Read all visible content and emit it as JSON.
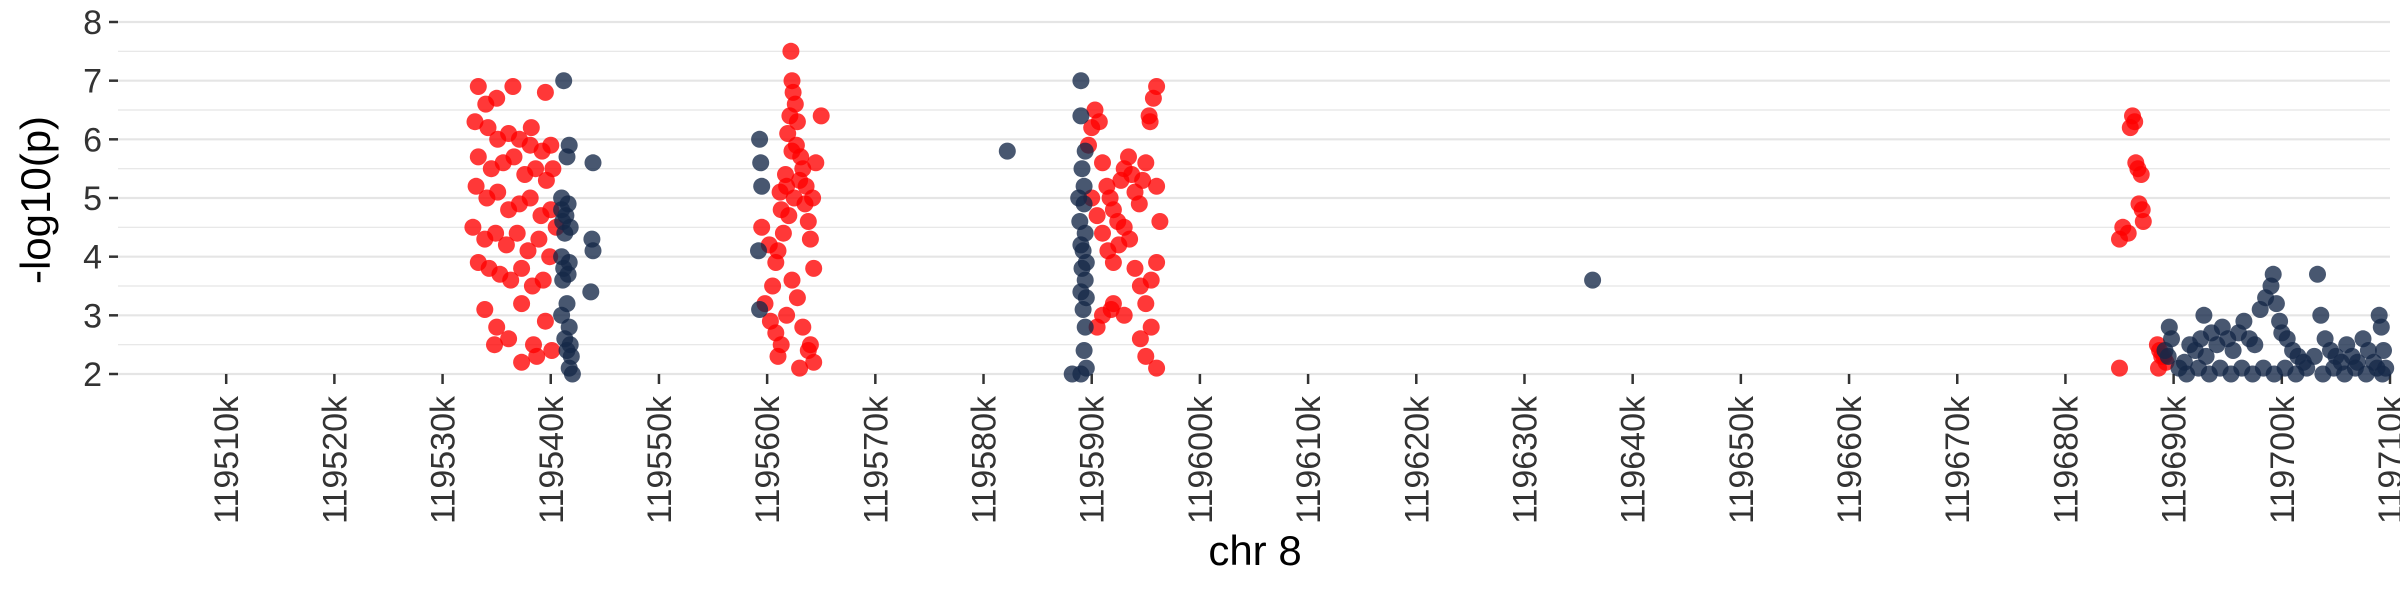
{
  "chart_data": {
    "type": "scatter",
    "title": "",
    "xlabel": "chr 8",
    "ylabel": "-log10(p)",
    "xlim": [
      119500000,
      119710000
    ],
    "ylim": [
      2,
      8
    ],
    "grid": "horizontal",
    "x_ticks": [
      119510000,
      119520000,
      119530000,
      119540000,
      119550000,
      119560000,
      119570000,
      119580000,
      119590000,
      119600000,
      119610000,
      119620000,
      119630000,
      119640000,
      119650000,
      119660000,
      119670000,
      119680000,
      119690000,
      119700000,
      119710000
    ],
    "x_tick_labels": [
      "119510k",
      "119520k",
      "119530k",
      "119540k",
      "119550k",
      "119560k",
      "119570k",
      "119580k",
      "119590k",
      "119600k",
      "119610k",
      "119620k",
      "119630k",
      "119640k",
      "119650k",
      "119660k",
      "119670k",
      "119680k",
      "119690k",
      "119700k",
      "119710k"
    ],
    "y_ticks": [
      2,
      3,
      4,
      5,
      6,
      7,
      8
    ],
    "y_tick_labels": [
      "2",
      "3",
      "4",
      "5",
      "6",
      "7",
      "8"
    ],
    "colors": {
      "series_a": "#ff0000",
      "series_b": "#152848",
      "grid": "#e5e5e5",
      "axis": "#333333"
    },
    "series": [
      {
        "color": "#ff0000",
        "points": [
          [
            119533300,
            6.9
          ],
          [
            119534000,
            6.6
          ],
          [
            119535000,
            6.7
          ],
          [
            119536500,
            6.9
          ],
          [
            119538200,
            6.2
          ],
          [
            119539500,
            6.8
          ],
          [
            119533000,
            6.3
          ],
          [
            119534200,
            6.2
          ],
          [
            119535100,
            6.0
          ],
          [
            119536100,
            6.1
          ],
          [
            119537100,
            6.0
          ],
          [
            119538100,
            5.9
          ],
          [
            119539200,
            5.8
          ],
          [
            119540000,
            5.9
          ],
          [
            119533300,
            5.7
          ],
          [
            119534500,
            5.5
          ],
          [
            119535600,
            5.6
          ],
          [
            119536600,
            5.7
          ],
          [
            119537600,
            5.4
          ],
          [
            119538600,
            5.5
          ],
          [
            119539600,
            5.3
          ],
          [
            119533100,
            5.2
          ],
          [
            119534100,
            5.0
          ],
          [
            119535100,
            5.1
          ],
          [
            119536100,
            4.8
          ],
          [
            119537100,
            4.9
          ],
          [
            119538100,
            5.0
          ],
          [
            119539100,
            4.7
          ],
          [
            119540000,
            4.8
          ],
          [
            119532800,
            4.5
          ],
          [
            119533900,
            4.3
          ],
          [
            119534900,
            4.4
          ],
          [
            119535900,
            4.2
          ],
          [
            119536900,
            4.4
          ],
          [
            119537900,
            4.1
          ],
          [
            119538900,
            4.3
          ],
          [
            119539900,
            4.0
          ],
          [
            119533300,
            3.9
          ],
          [
            119534300,
            3.8
          ],
          [
            119535300,
            3.7
          ],
          [
            119536300,
            3.6
          ],
          [
            119537300,
            3.8
          ],
          [
            119538300,
            3.5
          ],
          [
            119539300,
            3.6
          ],
          [
            119533900,
            3.1
          ],
          [
            119535000,
            2.8
          ],
          [
            119536100,
            2.6
          ],
          [
            119537300,
            3.2
          ],
          [
            119538400,
            2.5
          ],
          [
            119539500,
            2.9
          ],
          [
            119537300,
            2.2
          ],
          [
            119538700,
            2.3
          ],
          [
            119540100,
            2.4
          ],
          [
            119534800,
            2.5
          ],
          [
            119540200,
            5.5
          ],
          [
            119540500,
            4.5
          ],
          [
            119559500,
            4.5
          ],
          [
            119560200,
            4.2
          ],
          [
            119560800,
            3.9
          ],
          [
            119561300,
            4.8
          ],
          [
            119561800,
            5.2
          ],
          [
            119562300,
            5.8
          ],
          [
            119562800,
            6.3
          ],
          [
            119563300,
            5.5
          ],
          [
            119563800,
            4.6
          ],
          [
            119564300,
            3.8
          ],
          [
            119559800,
            3.2
          ],
          [
            119560300,
            2.9
          ],
          [
            119560800,
            2.7
          ],
          [
            119561300,
            2.5
          ],
          [
            119561800,
            3.0
          ],
          [
            119562300,
            3.6
          ],
          [
            119562800,
            3.3
          ],
          [
            119563300,
            2.8
          ],
          [
            119563800,
            2.4
          ],
          [
            119564300,
            2.2
          ],
          [
            119560500,
            3.5
          ],
          [
            119561000,
            4.1
          ],
          [
            119561500,
            4.4
          ],
          [
            119562000,
            4.7
          ],
          [
            119562500,
            5.0
          ],
          [
            119563000,
            5.3
          ],
          [
            119563500,
            4.9
          ],
          [
            119564000,
            4.3
          ],
          [
            119564500,
            5.6
          ],
          [
            119565000,
            6.4
          ],
          [
            119562200,
            7.5
          ],
          [
            119562300,
            7.0
          ],
          [
            119562400,
            6.8
          ],
          [
            119562600,
            6.6
          ],
          [
            119562100,
            6.4
          ],
          [
            119561900,
            6.1
          ],
          [
            119562700,
            5.9
          ],
          [
            119563100,
            5.7
          ],
          [
            119561700,
            5.4
          ],
          [
            119561200,
            5.1
          ],
          [
            119563600,
            5.2
          ],
          [
            119564200,
            5.0
          ],
          [
            119561000,
            2.3
          ],
          [
            119563000,
            2.1
          ],
          [
            119564000,
            2.5
          ],
          [
            119589700,
            5.9
          ],
          [
            119590000,
            6.2
          ],
          [
            119590300,
            6.5
          ],
          [
            119590700,
            6.3
          ],
          [
            119591000,
            5.6
          ],
          [
            119591400,
            5.2
          ],
          [
            119591700,
            5.0
          ],
          [
            119592000,
            4.8
          ],
          [
            119592400,
            4.6
          ],
          [
            119592700,
            5.3
          ],
          [
            119593000,
            5.5
          ],
          [
            119593400,
            5.7
          ],
          [
            119593700,
            5.4
          ],
          [
            119594000,
            5.1
          ],
          [
            119594400,
            4.9
          ],
          [
            119594700,
            5.3
          ],
          [
            119595000,
            5.6
          ],
          [
            119595400,
            6.3
          ],
          [
            119595700,
            6.7
          ],
          [
            119596000,
            6.9
          ],
          [
            119595300,
            6.4
          ],
          [
            119590000,
            5.0
          ],
          [
            119590500,
            4.7
          ],
          [
            119591000,
            4.4
          ],
          [
            119591500,
            4.1
          ],
          [
            119592000,
            3.9
          ],
          [
            119592500,
            4.2
          ],
          [
            119593000,
            4.5
          ],
          [
            119593500,
            4.3
          ],
          [
            119594000,
            3.8
          ],
          [
            119594500,
            3.5
          ],
          [
            119595000,
            3.2
          ],
          [
            119595500,
            3.6
          ],
          [
            119596000,
            3.9
          ],
          [
            119596300,
            4.6
          ],
          [
            119596000,
            5.2
          ],
          [
            119591000,
            3.0
          ],
          [
            119592000,
            3.2
          ],
          [
            119593000,
            3.0
          ],
          [
            119594500,
            2.6
          ],
          [
            119595500,
            2.8
          ],
          [
            119595000,
            2.3
          ],
          [
            119596000,
            2.1
          ],
          [
            119590500,
            2.8
          ],
          [
            119591800,
            3.1
          ],
          [
            119685000,
            4.3
          ],
          [
            119685300,
            4.5
          ],
          [
            119685800,
            4.4
          ],
          [
            119686000,
            6.2
          ],
          [
            119686200,
            6.4
          ],
          [
            119686400,
            6.3
          ],
          [
            119686500,
            5.6
          ],
          [
            119686700,
            5.5
          ],
          [
            119687000,
            5.4
          ],
          [
            119686800,
            4.9
          ],
          [
            119687100,
            4.8
          ],
          [
            119687200,
            4.6
          ],
          [
            119685000,
            2.1
          ],
          [
            119688500,
            2.5
          ],
          [
            119688700,
            2.4
          ],
          [
            119688900,
            2.3
          ],
          [
            119689100,
            2.3
          ],
          [
            119689300,
            2.2
          ],
          [
            119688600,
            2.1
          ]
        ]
      },
      {
        "color": "#152848",
        "points": [
          [
            119541200,
            7.0
          ],
          [
            119541700,
            5.9
          ],
          [
            119541500,
            5.7
          ],
          [
            119543900,
            5.6
          ],
          [
            119541000,
            5.0
          ],
          [
            119541600,
            4.9
          ],
          [
            119541000,
            4.8
          ],
          [
            119541400,
            4.7
          ],
          [
            119541100,
            4.6
          ],
          [
            119541800,
            4.5
          ],
          [
            119541300,
            4.4
          ],
          [
            119543800,
            4.3
          ],
          [
            119543900,
            4.1
          ],
          [
            119541000,
            4.0
          ],
          [
            119541700,
            3.9
          ],
          [
            119541200,
            3.8
          ],
          [
            119541600,
            3.7
          ],
          [
            119541100,
            3.6
          ],
          [
            119543700,
            3.4
          ],
          [
            119541500,
            3.2
          ],
          [
            119541000,
            3.0
          ],
          [
            119541700,
            2.8
          ],
          [
            119541300,
            2.6
          ],
          [
            119541800,
            2.5
          ],
          [
            119541500,
            2.4
          ],
          [
            119541900,
            2.3
          ],
          [
            119541700,
            2.1
          ],
          [
            119542000,
            2.0
          ],
          [
            119559300,
            6.0
          ],
          [
            119559400,
            5.6
          ],
          [
            119559500,
            5.2
          ],
          [
            119559200,
            4.1
          ],
          [
            119559300,
            3.1
          ],
          [
            119582200,
            5.8
          ],
          [
            119589000,
            7.0
          ],
          [
            119589000,
            6.4
          ],
          [
            119589400,
            5.8
          ],
          [
            119589100,
            5.5
          ],
          [
            119589300,
            5.2
          ],
          [
            119588800,
            5.0
          ],
          [
            119589300,
            4.9
          ],
          [
            119588900,
            4.6
          ],
          [
            119589400,
            4.4
          ],
          [
            119589000,
            4.2
          ],
          [
            119589200,
            4.1
          ],
          [
            119589500,
            3.9
          ],
          [
            119589100,
            3.8
          ],
          [
            119589400,
            3.6
          ],
          [
            119589000,
            3.4
          ],
          [
            119589500,
            3.3
          ],
          [
            119589200,
            3.1
          ],
          [
            119589400,
            2.8
          ],
          [
            119589300,
            2.4
          ],
          [
            119589500,
            2.1
          ],
          [
            119589000,
            2.0
          ],
          [
            119588200,
            2.0
          ],
          [
            119636300,
            3.6
          ],
          [
            119689600,
            2.8
          ],
          [
            119689800,
            2.6
          ],
          [
            119689200,
            2.4
          ],
          [
            119689500,
            2.3
          ],
          [
            119691000,
            2.2
          ],
          [
            119691500,
            2.5
          ],
          [
            119692000,
            2.4
          ],
          [
            119692500,
            2.6
          ],
          [
            119693000,
            2.3
          ],
          [
            119692800,
            3.0
          ],
          [
            119693500,
            2.7
          ],
          [
            119694000,
            2.5
          ],
          [
            119694500,
            2.8
          ],
          [
            119695000,
            2.6
          ],
          [
            119695500,
            2.4
          ],
          [
            119696000,
            2.7
          ],
          [
            119696500,
            2.9
          ],
          [
            119697000,
            2.6
          ],
          [
            119697500,
            2.5
          ],
          [
            119698000,
            3.1
          ],
          [
            119698500,
            3.3
          ],
          [
            119699000,
            3.5
          ],
          [
            119699200,
            3.7
          ],
          [
            119699500,
            3.2
          ],
          [
            119699800,
            2.9
          ],
          [
            119700000,
            2.7
          ],
          [
            119700500,
            2.6
          ],
          [
            119701000,
            2.4
          ],
          [
            119701500,
            2.3
          ],
          [
            119702000,
            2.2
          ],
          [
            119703000,
            2.3
          ],
          [
            119703300,
            3.7
          ],
          [
            119703600,
            3.0
          ],
          [
            119704000,
            2.6
          ],
          [
            119704500,
            2.4
          ],
          [
            119705000,
            2.3
          ],
          [
            119705500,
            2.2
          ],
          [
            119706000,
            2.5
          ],
          [
            119706500,
            2.3
          ],
          [
            119707000,
            2.2
          ],
          [
            119707500,
            2.6
          ],
          [
            119708000,
            2.4
          ],
          [
            119708500,
            2.2
          ],
          [
            119709000,
            3.0
          ],
          [
            119709200,
            2.8
          ],
          [
            119709400,
            2.4
          ],
          [
            119709300,
            2.0
          ],
          [
            119690500,
            2.1
          ],
          [
            119691200,
            2.0
          ],
          [
            119692300,
            2.1
          ],
          [
            119693300,
            2.0
          ],
          [
            119694300,
            2.1
          ],
          [
            119695300,
            2.0
          ],
          [
            119696300,
            2.1
          ],
          [
            119697300,
            2.0
          ],
          [
            119698300,
            2.1
          ],
          [
            119699300,
            2.0
          ],
          [
            119700300,
            2.1
          ],
          [
            119701300,
            2.0
          ],
          [
            119702300,
            2.1
          ],
          [
            119703800,
            2.0
          ],
          [
            119704800,
            2.1
          ],
          [
            119705800,
            2.0
          ],
          [
            119706800,
            2.1
          ],
          [
            119707800,
            2.0
          ],
          [
            119708800,
            2.1
          ],
          [
            119709600,
            2.1
          ]
        ]
      }
    ]
  }
}
